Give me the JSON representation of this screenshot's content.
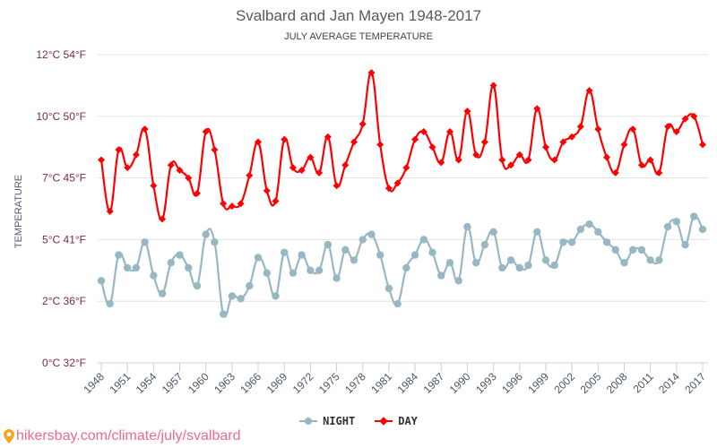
{
  "chart_data": {
    "type": "line",
    "title": "Svalbard and Jan Mayen 1948-2017",
    "subtitle": "JULY AVERAGE TEMPERATURE",
    "xlabel": "",
    "ylabel": "TEMPERATURE",
    "ylim": [
      0,
      12
    ],
    "yticks": [
      {
        "value": 0,
        "label": "0°C 32°F"
      },
      {
        "value": 2.4,
        "label": "2°C 36°F"
      },
      {
        "value": 4.8,
        "label": "5°C 41°F"
      },
      {
        "value": 7.2,
        "label": "7°C 45°F"
      },
      {
        "value": 9.6,
        "label": "10°C 50°F"
      },
      {
        "value": 12,
        "label": "12°C 54°F"
      }
    ],
    "xticks": [
      "1948",
      "1951",
      "1954",
      "1957",
      "1960",
      "1963",
      "1966",
      "1969",
      "1972",
      "1975",
      "1978",
      "1981",
      "1984",
      "1987",
      "1990",
      "1993",
      "1996",
      "1999",
      "2002",
      "2005",
      "2008",
      "2011",
      "2014",
      "2017"
    ],
    "grid": true,
    "legend_position": "bottom-center",
    "x": [
      1948,
      1949,
      1950,
      1951,
      1952,
      1953,
      1954,
      1955,
      1956,
      1957,
      1958,
      1959,
      1960,
      1961,
      1962,
      1963,
      1964,
      1965,
      1966,
      1967,
      1968,
      1969,
      1970,
      1971,
      1972,
      1973,
      1974,
      1975,
      1976,
      1977,
      1978,
      1979,
      1980,
      1981,
      1982,
      1983,
      1984,
      1985,
      1986,
      1987,
      1988,
      1989,
      1990,
      1991,
      1992,
      1993,
      1994,
      1995,
      1996,
      1997,
      1998,
      1999,
      2000,
      2001,
      2002,
      2003,
      2004,
      2005,
      2006,
      2007,
      2008,
      2009,
      2010,
      2011,
      2012,
      2013,
      2014,
      2015,
      2016,
      2017
    ],
    "series": [
      {
        "name": "NIGHT",
        "color": "#97b8c2",
        "marker": "circle",
        "values": [
          3.2,
          2.3,
          4.2,
          3.7,
          3.7,
          4.7,
          3.4,
          2.7,
          3.9,
          4.2,
          3.7,
          3.0,
          5.0,
          4.7,
          1.9,
          2.6,
          2.5,
          3.0,
          4.1,
          3.5,
          2.6,
          4.3,
          3.5,
          4.2,
          3.6,
          3.6,
          4.6,
          3.3,
          4.4,
          4.0,
          4.8,
          5.0,
          4.2,
          2.9,
          2.3,
          3.7,
          4.2,
          4.8,
          4.3,
          3.4,
          3.9,
          3.2,
          5.3,
          3.9,
          4.6,
          5.1,
          3.7,
          4.0,
          3.7,
          3.8,
          5.1,
          4.0,
          3.8,
          4.7,
          4.7,
          5.2,
          5.4,
          5.1,
          4.7,
          4.4,
          3.9,
          4.4,
          4.4,
          4.0,
          4.0,
          5.3,
          5.5,
          4.6,
          5.7,
          5.2
        ]
      },
      {
        "name": "DAY",
        "color": "#ff0000",
        "marker": "diamond",
        "values": [
          7.9,
          5.9,
          8.3,
          7.6,
          8.1,
          9.1,
          6.9,
          5.6,
          7.7,
          7.5,
          7.2,
          6.6,
          9.0,
          8.3,
          6.2,
          6.1,
          6.2,
          7.3,
          8.6,
          6.7,
          6.3,
          8.7,
          7.6,
          7.5,
          8.0,
          7.4,
          8.8,
          6.9,
          7.7,
          8.6,
          9.3,
          11.3,
          8.5,
          6.8,
          7.0,
          7.6,
          8.7,
          9.0,
          8.4,
          7.8,
          9.0,
          7.9,
          9.8,
          8.1,
          8.6,
          10.8,
          7.9,
          7.7,
          8.1,
          7.9,
          9.9,
          8.4,
          7.9,
          8.6,
          8.8,
          9.2,
          10.6,
          9.1,
          8.0,
          7.4,
          8.5,
          9.1,
          7.7,
          7.9,
          7.4,
          9.2,
          9.0,
          9.5,
          9.6,
          8.5
        ]
      }
    ]
  },
  "legend": {
    "night_label": "NIGHT",
    "day_label": "DAY"
  },
  "footer": {
    "source_text": "hikersbay.com/climate/july/svalbard"
  }
}
